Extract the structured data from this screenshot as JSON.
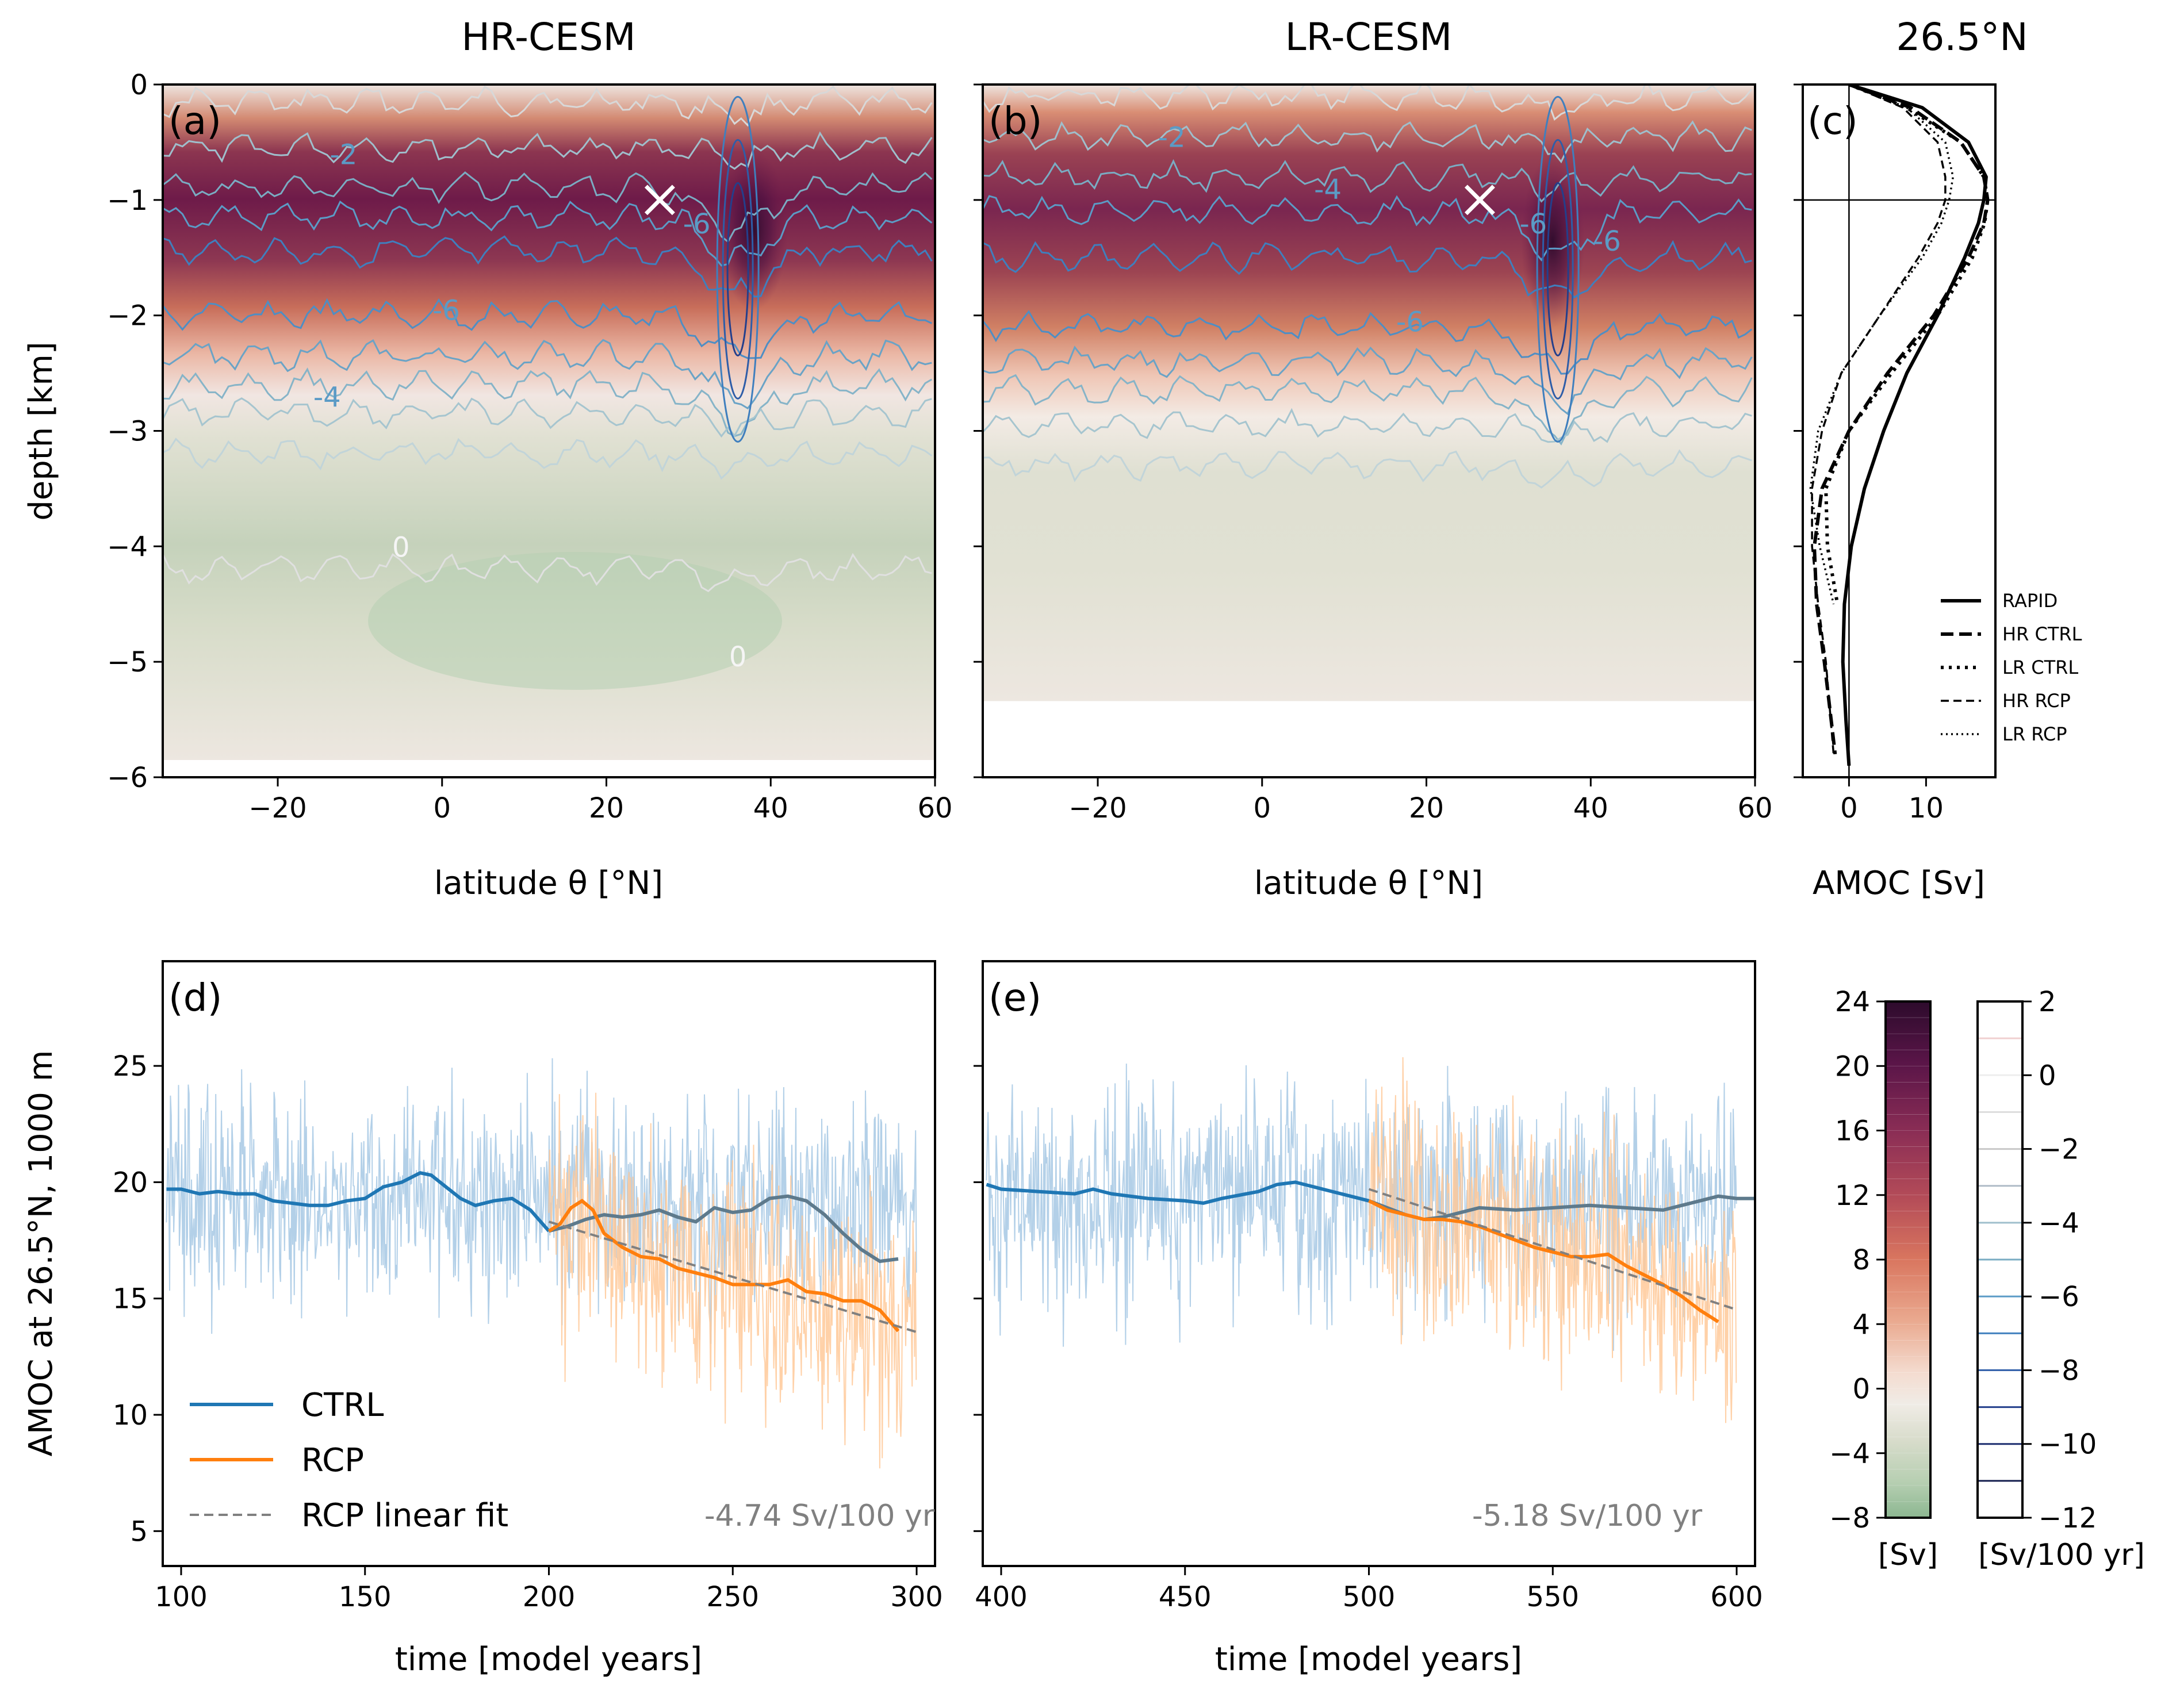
{
  "figure": {
    "titles": {
      "a": "HR-CESM",
      "b": "LR-CESM",
      "c": "26.5$^{\\circ}$N"
    },
    "title_c": "26.5°N",
    "depth_label": "depth [km]",
    "lat_label": "latitude θ [°N]",
    "amoc_label": "AMOC [Sv]",
    "time_label": "time [model years]",
    "ts_ylabel": "AMOC  at  26.5°N, 1000 m",
    "colorbar1_unit": "[Sv]",
    "colorbar2_unit": "[Sv/100 yr]"
  },
  "chart_data": [
    {
      "panel": "a",
      "type": "heatmap",
      "title": "HR-CESM",
      "label": "(a)",
      "xlabel": "latitude θ [°N]",
      "ylabel": "depth [km]",
      "xlim": [
        -34,
        60
      ],
      "ylim": [
        -6,
        0
      ],
      "xticks": [
        -20,
        0,
        20,
        40,
        60
      ],
      "yticks": [
        0,
        -1,
        -2,
        -3,
        -4,
        -5,
        -6
      ],
      "max_depth": -5.9,
      "marker": {
        "x": 26.5,
        "y": -1,
        "symbol": "×"
      },
      "contour_labels": [
        {
          "text": "-2",
          "x": -12,
          "y": -0.6
        },
        {
          "text": "-6",
          "x": 31,
          "y": -1.2
        },
        {
          "text": "-6",
          "x": 0.5,
          "y": -1.95
        },
        {
          "text": "-4",
          "x": -14,
          "y": -2.7
        },
        {
          "text": "0",
          "x": -5,
          "y": -4.0
        },
        {
          "text": "0",
          "x": 36,
          "y": -4.95
        }
      ],
      "streamfunction_Sv": {
        "description": "AMOC streamfunction, max ~24 Sv near 35°N, 1.2 km",
        "core_lat": 36,
        "core_depth": -1.25,
        "max": 24
      }
    },
    {
      "panel": "b",
      "type": "heatmap",
      "title": "LR-CESM",
      "label": "(b)",
      "xlabel": "latitude θ [°N]",
      "xlim": [
        -34,
        60
      ],
      "ylim": [
        -6,
        0
      ],
      "xticks": [
        -20,
        0,
        20,
        40,
        60
      ],
      "max_depth": -5.35,
      "marker": {
        "x": 26.5,
        "y": -1,
        "symbol": "×"
      },
      "contour_labels": [
        {
          "text": "-2",
          "x": -11,
          "y": -0.45
        },
        {
          "text": "-4",
          "x": 8,
          "y": -0.9
        },
        {
          "text": "-6",
          "x": 33,
          "y": -1.2
        },
        {
          "text": "-6",
          "x": 42,
          "y": -1.35
        },
        {
          "text": "-6",
          "x": 18,
          "y": -2.05
        }
      ],
      "streamfunction_Sv": {
        "core_lat": 36,
        "core_depth": -1.3,
        "max": 24
      }
    },
    {
      "panel": "c",
      "type": "line",
      "title": "26.5°N",
      "label": "(c)",
      "xlabel": "AMOC [Sv]",
      "xlim": [
        -6,
        19
      ],
      "ylim": [
        -6,
        0
      ],
      "xticks": [
        0,
        10
      ],
      "legend_position": "lower-right",
      "series": [
        {
          "name": "RAPID",
          "style": "solid",
          "depth": [
            0,
            -0.2,
            -0.5,
            -0.8,
            -1.0,
            -1.2,
            -1.5,
            -2.0,
            -2.5,
            -3.0,
            -3.5,
            -4.0,
            -4.5,
            -5.0,
            -5.5,
            -5.9
          ],
          "amoc": [
            0,
            9.5,
            15.5,
            17.8,
            17.5,
            16.8,
            15.0,
            11.5,
            7.5,
            4.5,
            2.0,
            0.3,
            -0.6,
            -0.8,
            -0.4,
            0
          ]
        },
        {
          "name": "HR CTRL",
          "style": "dashed",
          "depth": [
            0,
            -0.2,
            -0.5,
            -0.8,
            -1.0,
            -1.2,
            -1.5,
            -2.0,
            -2.5,
            -3.0,
            -3.5,
            -4.0,
            -4.5,
            -5.0,
            -5.4,
            -5.8
          ],
          "amoc": [
            0,
            8,
            14.5,
            17.5,
            18,
            17.5,
            15.5,
            11,
            5,
            0,
            -3.5,
            -4.5,
            -4.2,
            -3.2,
            -2.5,
            -1.8
          ]
        },
        {
          "name": "LR CTRL",
          "style": "dotted",
          "depth": [
            0,
            -0.2,
            -0.5,
            -0.8,
            -1.0,
            -1.2,
            -1.5,
            -2.0,
            -2.5,
            -3.0,
            -3.5,
            -4.0,
            -4.5
          ],
          "amoc": [
            0,
            7.5,
            14.5,
            17.5,
            18,
            17.6,
            16,
            11.5,
            5.5,
            0,
            -3,
            -2.8,
            -1.5
          ]
        },
        {
          "name": "HR RCP",
          "style": "dashed-thin",
          "depth": [
            0,
            -0.2,
            -0.5,
            -0.8,
            -1.0,
            -1.2,
            -1.5,
            -2.0,
            -2.5,
            -3.0,
            -3.5,
            -4.0,
            -4.5,
            -5.0,
            -5.4,
            -5.8
          ],
          "amoc": [
            0,
            7,
            11.5,
            12.5,
            12.5,
            11.5,
            9,
            4,
            -1,
            -3.5,
            -4.8,
            -4.8,
            -4,
            -3,
            -2.5,
            -2
          ]
        },
        {
          "name": "LR RCP",
          "style": "dotted-thin",
          "depth": [
            0,
            -0.2,
            -0.5,
            -0.8,
            -1.0,
            -1.2,
            -1.5,
            -2.0,
            -2.5,
            -3.0,
            -3.5,
            -4.0,
            -4.5
          ],
          "amoc": [
            0,
            7.5,
            12.5,
            13.5,
            13,
            12,
            9.5,
            4,
            -1,
            -4,
            -5,
            -3.8,
            -2
          ]
        }
      ],
      "reference_lines": {
        "vertical_x": 0,
        "horizontal_y": -1
      }
    },
    {
      "panel": "d",
      "type": "line",
      "label": "(d)",
      "xlabel": "time [model years]",
      "ylabel": "AMOC  at  26.5°N, 1000 m",
      "xlim": [
        95,
        305
      ],
      "ylim": [
        3.5,
        29.5
      ],
      "xticks": [
        100,
        150,
        200,
        250,
        300
      ],
      "yticks": [
        5,
        10,
        15,
        20,
        25
      ],
      "trend_annotation": "-4.74 Sv/100 yr",
      "legend": [
        "CTRL",
        "RCP",
        "RCP linear fit"
      ],
      "series": [
        {
          "name": "CTRL",
          "color": "#1f77b4",
          "x": [
            96,
            100,
            105,
            110,
            115,
            120,
            125,
            130,
            135,
            140,
            145,
            150,
            155,
            160,
            165,
            168,
            172,
            176,
            180,
            185,
            190,
            195,
            200,
            205,
            210,
            215,
            220,
            225,
            230,
            235,
            240,
            245,
            250,
            255,
            260,
            265,
            270,
            275,
            280,
            285,
            290,
            295
          ],
          "y": [
            19.7,
            19.7,
            19.5,
            19.6,
            19.5,
            19.5,
            19.2,
            19.1,
            19.0,
            19.0,
            19.2,
            19.3,
            19.8,
            20.0,
            20.4,
            20.3,
            19.8,
            19.3,
            19.0,
            19.2,
            19.3,
            18.8,
            17.9,
            18.1,
            18.4,
            18.6,
            18.5,
            18.6,
            18.8,
            18.5,
            18.3,
            18.9,
            18.7,
            18.8,
            19.3,
            19.4,
            19.2,
            18.6,
            17.8,
            17.1,
            16.6,
            16.7
          ]
        },
        {
          "name": "RCP",
          "color": "#ff7f0e",
          "x": [
            200,
            203,
            206,
            209,
            212,
            215,
            220,
            225,
            230,
            235,
            240,
            245,
            250,
            255,
            260,
            265,
            270,
            275,
            280,
            285,
            290,
            295
          ],
          "y": [
            17.9,
            18.2,
            18.9,
            19.2,
            18.8,
            17.8,
            17.2,
            16.8,
            16.7,
            16.3,
            16.1,
            15.9,
            15.6,
            15.6,
            15.6,
            15.8,
            15.3,
            15.2,
            14.9,
            14.9,
            14.5,
            13.6
          ]
        },
        {
          "name": "RCP linear fit",
          "color": "#808080",
          "x": [
            200,
            300
          ],
          "y": [
            18.3,
            13.56
          ]
        }
      ],
      "noise_range": {
        "ctrl": [
          11,
          28.5
        ],
        "rcp": [
          4,
          28
        ]
      }
    },
    {
      "panel": "e",
      "type": "line",
      "label": "(e)",
      "xlabel": "time [model years]",
      "xlim": [
        395,
        605
      ],
      "ylim": [
        3.5,
        29.5
      ],
      "xticks": [
        400,
        450,
        500,
        550,
        600
      ],
      "trend_annotation": "-5.18 Sv/100 yr",
      "series": [
        {
          "name": "CTRL",
          "color": "#1f77b4",
          "x": [
            396,
            400,
            410,
            420,
            425,
            430,
            440,
            450,
            455,
            460,
            470,
            475,
            480,
            485,
            490,
            495,
            500,
            505,
            510,
            515,
            520,
            530,
            540,
            550,
            560,
            570,
            580,
            590,
            595,
            600,
            605
          ],
          "y": [
            19.9,
            19.7,
            19.6,
            19.5,
            19.7,
            19.5,
            19.3,
            19.2,
            19.1,
            19.3,
            19.6,
            19.9,
            20.0,
            19.8,
            19.6,
            19.4,
            19.2,
            18.9,
            18.6,
            18.4,
            18.5,
            18.9,
            18.8,
            18.9,
            19.0,
            18.9,
            18.8,
            19.2,
            19.4,
            19.3,
            19.3
          ]
        },
        {
          "name": "RCP",
          "color": "#ff7f0e",
          "x": [
            500,
            505,
            510,
            515,
            520,
            525,
            530,
            535,
            540,
            545,
            550,
            555,
            560,
            565,
            570,
            575,
            580,
            585,
            590,
            595
          ],
          "y": [
            19.2,
            18.8,
            18.6,
            18.4,
            18.4,
            18.3,
            18.1,
            17.8,
            17.5,
            17.2,
            17.0,
            16.8,
            16.8,
            16.9,
            16.4,
            16.0,
            15.6,
            15.1,
            14.5,
            14.0
          ]
        },
        {
          "name": "RCP linear fit",
          "color": "#808080",
          "x": [
            500,
            600
          ],
          "y": [
            19.7,
            14.52
          ]
        }
      ]
    },
    {
      "panel": "colorbar-streamfunction",
      "type": "heatmap",
      "unit": "[Sv]",
      "range": [
        -8,
        24
      ],
      "ticks": [
        24,
        20,
        16,
        12,
        8,
        4,
        0,
        -4,
        -8
      ]
    },
    {
      "panel": "colorbar-trend",
      "type": "heatmap",
      "unit": "[Sv/100 yr]",
      "range": [
        -12,
        2
      ],
      "ticks": [
        2,
        0,
        -2,
        -4,
        -6,
        -8,
        -10,
        -12
      ]
    }
  ],
  "colors": {
    "ctrl": "#1f77b4",
    "rcp": "#ff7f0e",
    "ctrl_noise": "#a6c8e4",
    "rcp_noise": "#ffc999",
    "fit": "#808080",
    "ctrl_after": "#5e7a8c"
  }
}
